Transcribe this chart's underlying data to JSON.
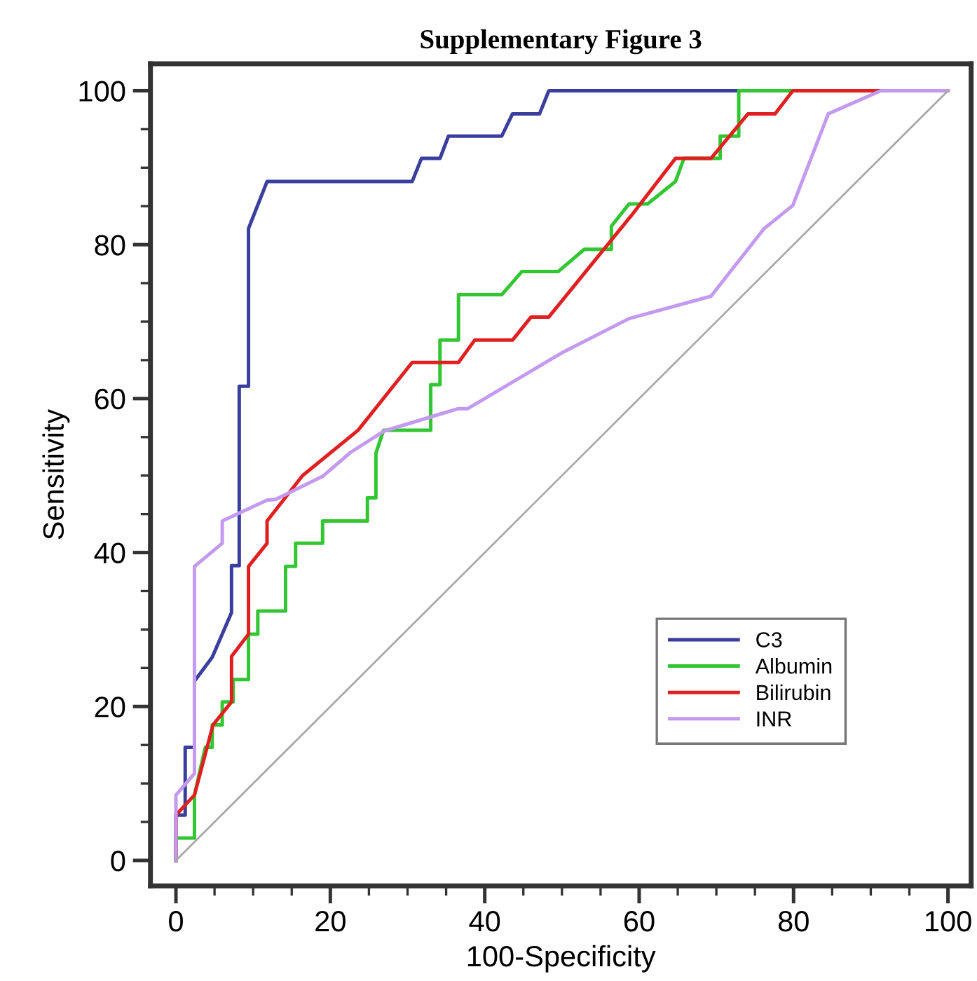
{
  "chart_data": {
    "type": "line",
    "title": "Supplementary Figure 3",
    "xlabel": "100-Specificity",
    "ylabel": "Sensitivity",
    "xlim": [
      -3.3,
      103
    ],
    "ylim": [
      -3.3,
      103.5
    ],
    "xticks": [
      0,
      {
        "value": 5,
        "label": null
      },
      {
        "value": 10,
        "label": null
      },
      {
        "value": 15,
        "label": null
      },
      20,
      {
        "value": 25,
        "label": null
      },
      {
        "value": 30,
        "label": null
      },
      {
        "value": 35,
        "label": null
      },
      40,
      {
        "value": 45,
        "label": null
      },
      {
        "value": 50,
        "label": null
      },
      {
        "value": 55,
        "label": null
      },
      60,
      {
        "value": 65,
        "label": null
      },
      {
        "value": 70,
        "label": null
      },
      {
        "value": 75,
        "label": null
      },
      80,
      {
        "value": 85,
        "label": null
      },
      {
        "value": 90,
        "label": null
      },
      {
        "value": 95,
        "label": null
      },
      100
    ],
    "yticks": [
      0,
      {
        "value": 5,
        "label": null
      },
      {
        "value": 10,
        "label": null
      },
      {
        "value": 15,
        "label": null
      },
      20,
      {
        "value": 25,
        "label": null
      },
      {
        "value": 30,
        "label": null
      },
      {
        "value": 35,
        "label": null
      },
      40,
      {
        "value": 45,
        "label": null
      },
      {
        "value": 50,
        "label": null
      },
      {
        "value": 55,
        "label": null
      },
      60,
      {
        "value": 65,
        "label": null
      },
      {
        "value": 70,
        "label": null
      },
      {
        "value": 75,
        "label": null
      },
      80,
      {
        "value": 85,
        "label": null
      },
      {
        "value": 90,
        "label": null
      },
      {
        "value": 95,
        "label": null
      },
      100
    ],
    "grid": false,
    "legend": "bottom right",
    "series": [
      {
        "name": "C3",
        "color": "#3a3f9e",
        "x": [
          0,
          0,
          1.2,
          1.2,
          2.4,
          2.4,
          4.7,
          7.2,
          7.2,
          8.2,
          8.2,
          9.4,
          9.4,
          11.8,
          30.6,
          31.8,
          34.2,
          35.3,
          42.2,
          43.6,
          47.1,
          48.3,
          100
        ],
        "values": [
          0,
          5.9,
          5.9,
          14.7,
          14.7,
          23.3,
          26.4,
          32.2,
          38.3,
          38.3,
          61.6,
          61.6,
          82.1,
          88.2,
          88.2,
          91.2,
          91.2,
          94.1,
          94.1,
          97.0,
          97.0,
          100,
          100
        ]
      },
      {
        "name": "Albumin",
        "color": "#33c633",
        "x": [
          0,
          0,
          2.4,
          2.4,
          3.8,
          4.7,
          4.7,
          6.0,
          6.0,
          7.4,
          7.4,
          9.4,
          9.4,
          10.6,
          10.6,
          14.2,
          14.2,
          15.5,
          15.5,
          19.0,
          19.0,
          24.8,
          24.8,
          25.9,
          25.9,
          26.9,
          33.0,
          33.0,
          34.2,
          34.2,
          36.6,
          36.6,
          42.2,
          44.8,
          49.5,
          52.9,
          56.4,
          56.4,
          58.7,
          61.1,
          64.7,
          65.8,
          70.5,
          70.5,
          72.9,
          72.9,
          100
        ],
        "values": [
          0,
          2.9,
          2.9,
          8.5,
          14.7,
          14.7,
          17.6,
          17.6,
          20.6,
          20.6,
          23.5,
          23.5,
          29.4,
          29.4,
          32.4,
          32.4,
          38.2,
          38.2,
          41.2,
          41.2,
          44.1,
          44.1,
          47.1,
          47.1,
          52.9,
          55.9,
          55.9,
          61.8,
          61.8,
          67.6,
          67.6,
          73.5,
          73.5,
          76.5,
          76.5,
          79.4,
          79.4,
          82.4,
          85.3,
          85.3,
          88.2,
          91.2,
          91.2,
          94.1,
          94.1,
          100,
          100
        ]
      },
      {
        "name": "Bilirubin",
        "color": "#e02020",
        "x": [
          0,
          0,
          2.4,
          4.8,
          7.2,
          7.2,
          9.4,
          9.4,
          11.8,
          11.8,
          16.4,
          23.6,
          30.6,
          36.6,
          38.7,
          43.6,
          46.0,
          48.3,
          59.0,
          64.7,
          69.3,
          74.1,
          77.6,
          79.9,
          100
        ],
        "values": [
          0,
          5.9,
          8.5,
          17.6,
          20.6,
          26.5,
          29.4,
          38.2,
          41.2,
          44.1,
          50.0,
          55.9,
          64.7,
          64.7,
          67.6,
          67.6,
          70.6,
          70.6,
          83.8,
          91.2,
          91.2,
          97.0,
          97.0,
          100,
          100
        ]
      },
      {
        "name": "INR",
        "color": "#c49af0",
        "x": [
          0,
          0,
          2.4,
          2.4,
          6.0,
          6.0,
          11.8,
          12.9,
          19.0,
          22.6,
          27.0,
          33.6,
          36.6,
          37.8,
          49.9,
          58.7,
          69.3,
          76.2,
          79.9,
          84.5,
          91.3,
          100
        ],
        "values": [
          0,
          8.5,
          11.3,
          38.2,
          41.2,
          44.1,
          46.8,
          46.9,
          49.9,
          53.0,
          55.8,
          57.8,
          58.7,
          58.7,
          65.9,
          70.4,
          73.3,
          82.1,
          85.1,
          97.0,
          100,
          100
        ]
      },
      {
        "color": "#a8a8a8",
        "x": [
          0,
          100
        ],
        "values": [
          0,
          100
        ]
      }
    ]
  }
}
